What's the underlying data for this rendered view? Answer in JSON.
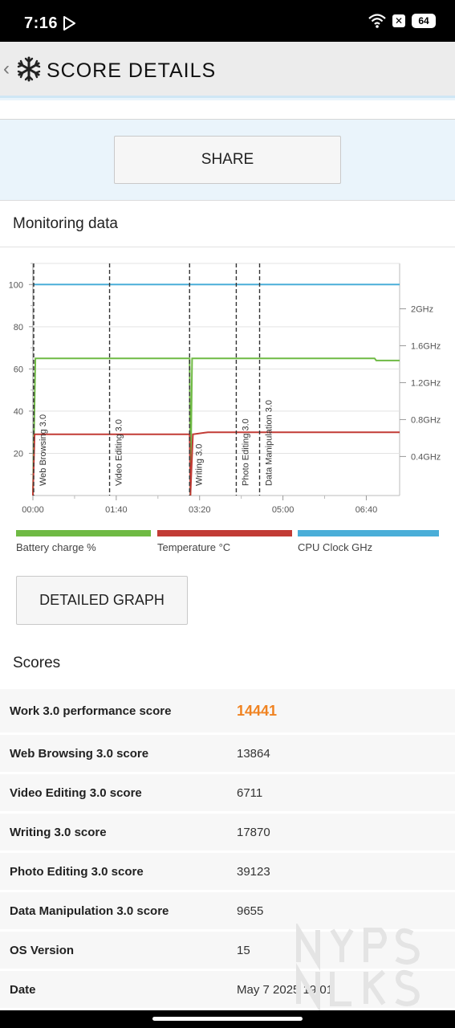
{
  "status_bar": {
    "time": "7:16",
    "battery": "64"
  },
  "header": {
    "title": "SCORE DETAILS"
  },
  "share_label": "SHARE",
  "monitoring": {
    "title": "Monitoring data",
    "detailed_graph_label": "DETAILED GRAPH"
  },
  "chart_data": {
    "type": "line",
    "x_unit": "elapsed time (hh:mm)",
    "x_range": [
      "00:00",
      "07:20"
    ],
    "x_ticks": [
      "00:00",
      "01:40",
      "03:20",
      "05:00",
      "06:40"
    ],
    "y_left_range": [
      0,
      110
    ],
    "y_left_ticks": [
      "20",
      "40",
      "60",
      "80",
      "100"
    ],
    "y_right_ticks": [
      "0.4GHz",
      "0.8GHz",
      "1.2GHz",
      "1.6GHz",
      "2GHz"
    ],
    "grid": true,
    "legend_placement": "bottom",
    "markers": [
      {
        "label": "Web Browsing 3.0",
        "time": "00:00"
      },
      {
        "label": "Video Editing 3.0",
        "time": "01:32"
      },
      {
        "label": "Writing 3.0",
        "time": "03:08"
      },
      {
        "label": "Photo Editing 3.0",
        "time": "04:04"
      },
      {
        "label": "Data Manipulation 3.0",
        "time": "04:32"
      }
    ],
    "series": [
      {
        "name": "Battery charge %",
        "color": "#6fba44",
        "points": [
          [
            "00:00",
            0
          ],
          [
            "00:03",
            65
          ],
          [
            "03:08",
            65
          ],
          [
            "03:09",
            0
          ],
          [
            "03:11",
            65
          ],
          [
            "06:50",
            65
          ],
          [
            "06:52",
            64
          ],
          [
            "07:20",
            64
          ]
        ]
      },
      {
        "name": "Temperature °C",
        "color": "#c23b35",
        "points": [
          [
            "00:00",
            0
          ],
          [
            "00:02",
            29
          ],
          [
            "03:08",
            29
          ],
          [
            "03:09",
            0
          ],
          [
            "03:12",
            29
          ],
          [
            "03:30",
            30
          ],
          [
            "07:20",
            30
          ]
        ]
      },
      {
        "name": "CPU Clock GHz",
        "color": "#4aaed8",
        "points": [
          [
            "00:00",
            100
          ],
          [
            "07:20",
            100
          ]
        ]
      }
    ]
  },
  "scores": {
    "title": "Scores",
    "rows": [
      {
        "label": "Work 3.0 performance score",
        "value": "14441"
      },
      {
        "label": "Web Browsing 3.0 score",
        "value": "13864"
      },
      {
        "label": "Video Editing 3.0 score",
        "value": "6711"
      },
      {
        "label": "Writing 3.0 score",
        "value": "17870"
      },
      {
        "label": "Photo Editing 3.0 score",
        "value": "39123"
      },
      {
        "label": "Data Manipulation 3.0 score",
        "value": "9655"
      },
      {
        "label": "OS Version",
        "value": "15"
      },
      {
        "label": "Date",
        "value": "May 7 2025 19:01"
      }
    ]
  }
}
